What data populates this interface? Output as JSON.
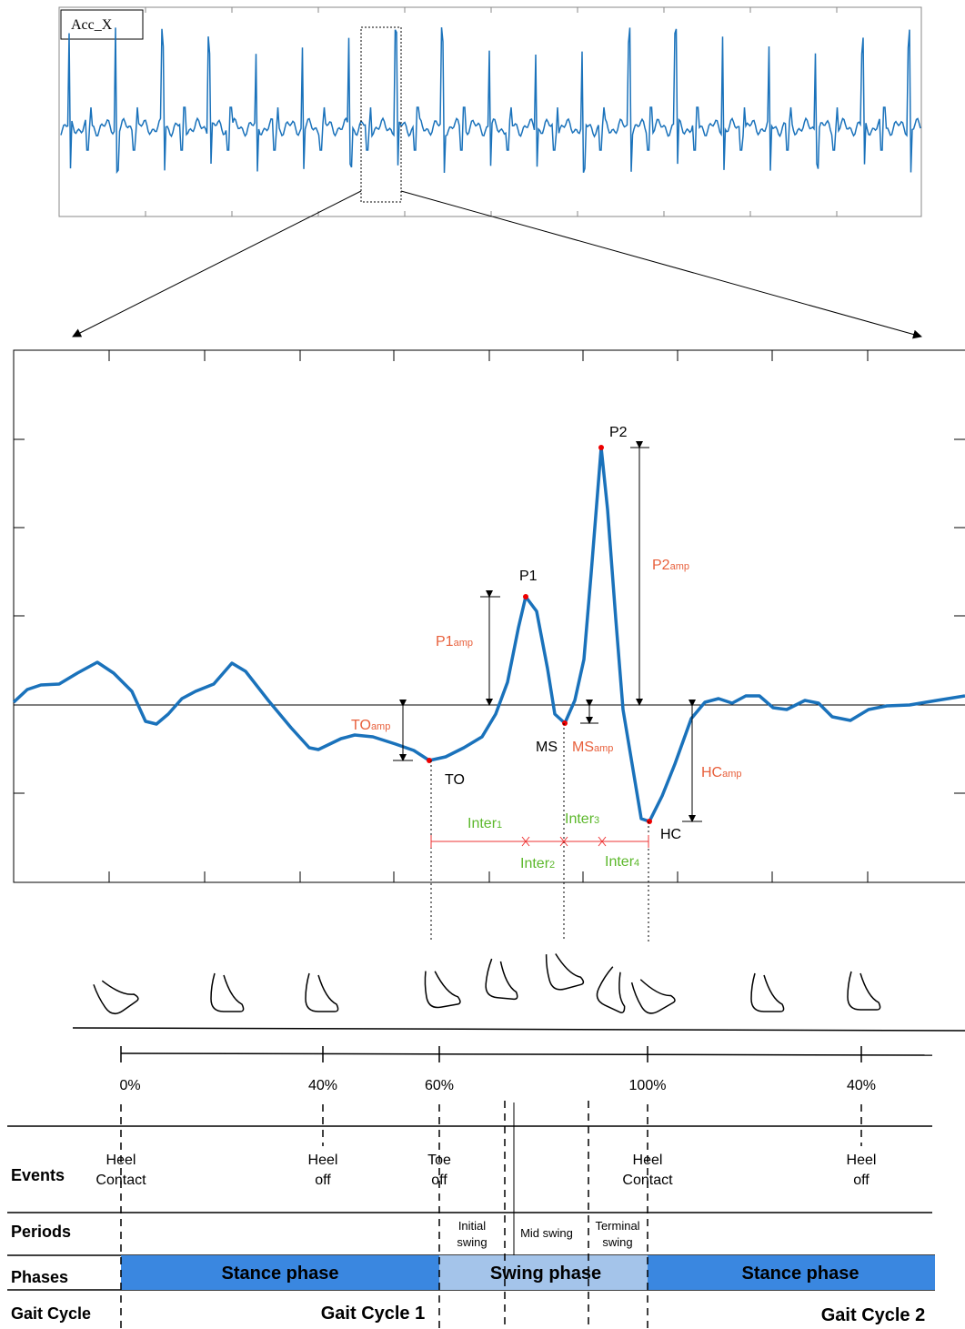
{
  "top_plot": {
    "label": "Acc_X"
  },
  "zoom_plot": {
    "P2": "P2",
    "P1": "P1",
    "P2amp": {
      "base": "P2",
      "sub": "amp"
    },
    "P1amp": {
      "base": "P1",
      "sub": "amp"
    },
    "TOamp": {
      "base": "TO",
      "sub": "amp"
    },
    "MSamp": {
      "base": "MS",
      "sub": "amp"
    },
    "HCamp": {
      "base": "HC",
      "sub": "amp"
    },
    "TO": "TO",
    "MS": "MS",
    "HC": "HC",
    "inters": [
      {
        "base": "Inter",
        "sub": "1"
      },
      {
        "base": "Inter",
        "sub": "2"
      },
      {
        "base": "Inter",
        "sub": "3"
      },
      {
        "base": "Inter",
        "sub": "4"
      }
    ]
  },
  "timeline": {
    "percents": [
      "0%",
      "40%",
      "60%",
      "100%",
      "40%"
    ]
  },
  "table": {
    "row_labels": [
      "Events",
      "Periods",
      "Phases",
      "Gait Cycle"
    ],
    "events": [
      [
        "Heel",
        "Contact"
      ],
      [
        "Heel",
        "off"
      ],
      [
        "Toe",
        "off"
      ],
      [
        "Heel",
        "Contact"
      ],
      [
        "Heel",
        "off"
      ]
    ],
    "periods": [
      [
        "Initial",
        "swing"
      ],
      [
        "Mid swing"
      ],
      [
        "Terminal",
        "swing"
      ]
    ],
    "phases": [
      "Stance phase",
      "Swing phase",
      "Stance phase"
    ],
    "cycles": [
      "Gait Cycle 1",
      "Gait Cycle 2"
    ]
  }
}
